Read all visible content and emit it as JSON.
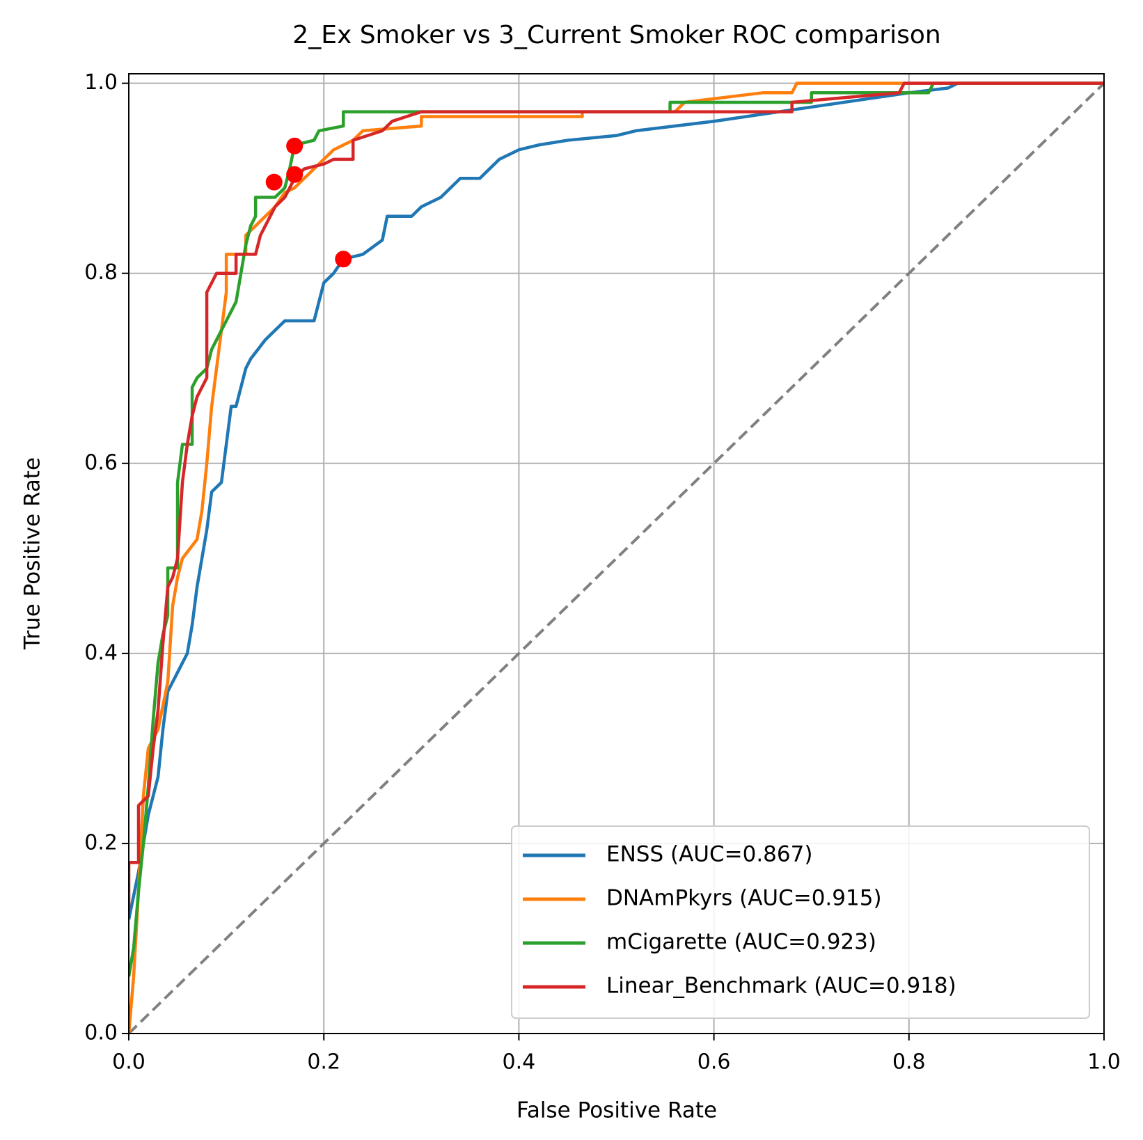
{
  "chart_data": {
    "type": "line",
    "title": "2_Ex Smoker vs 3_Current Smoker ROC comparison",
    "x_label": "False Positive Rate",
    "y_label": "True Positive Rate",
    "xlim": [
      0,
      1
    ],
    "ylim": [
      0,
      1.01
    ],
    "xticks": [
      {
        "value": 0,
        "label": "0.0"
      },
      0.2,
      0.4,
      0.6,
      0.8,
      {
        "value": 1,
        "label": "1.0"
      }
    ],
    "yticks": [
      {
        "value": 0,
        "label": "0.0"
      },
      0.2,
      0.4,
      0.6,
      0.8,
      {
        "value": 1,
        "label": "1.0"
      }
    ],
    "grid": true,
    "legend": "lower right",
    "series": [
      {
        "name": "ENSS (AUC=0.867)",
        "color": "#1f77b4",
        "x": [
          0,
          0.01,
          0.015,
          0.02,
          0.03,
          0.035,
          0.04,
          0.05,
          0.06,
          0.065,
          0.07,
          0.075,
          0.08,
          0.085,
          0.095,
          0.1,
          0.105,
          0.11,
          0.115,
          0.12,
          0.125,
          0.14,
          0.15,
          0.16,
          0.19,
          0.195,
          0.2,
          0.21,
          0.22,
          0.24,
          0.26,
          0.265,
          0.29,
          0.3,
          0.32,
          0.34,
          0.36,
          0.37,
          0.38,
          0.4,
          0.42,
          0.45,
          0.5,
          0.52,
          0.6,
          0.7,
          0.8,
          0.84,
          0.85,
          1
        ],
        "values": [
          0.12,
          0.17,
          0.2,
          0.23,
          0.27,
          0.32,
          0.36,
          0.38,
          0.4,
          0.43,
          0.47,
          0.5,
          0.53,
          0.57,
          0.58,
          0.62,
          0.66,
          0.66,
          0.68,
          0.7,
          0.71,
          0.73,
          0.74,
          0.75,
          0.75,
          0.77,
          0.79,
          0.8,
          0.815,
          0.82,
          0.835,
          0.86,
          0.86,
          0.87,
          0.88,
          0.9,
          0.9,
          0.91,
          0.92,
          0.93,
          0.935,
          0.94,
          0.945,
          0.95,
          0.96,
          0.975,
          0.99,
          0.995,
          1,
          1
        ]
      },
      {
        "name": "DNAmPkyrs (AUC=0.915)",
        "color": "#ff7f0e",
        "x": [
          0,
          0.005,
          0.01,
          0.015,
          0.02,
          0.03,
          0.04,
          0.045,
          0.05,
          0.055,
          0.07,
          0.075,
          0.08,
          0.085,
          0.09,
          0.095,
          0.1,
          0.1,
          0.12,
          0.12,
          0.14,
          0.15,
          0.16,
          0.17,
          0.18,
          0.2,
          0.21,
          0.23,
          0.24,
          0.3,
          0.3,
          0.465,
          0.465,
          0.56,
          0.57,
          0.65,
          0.68,
          0.685,
          1
        ],
        "values": [
          0,
          0.06,
          0.15,
          0.25,
          0.3,
          0.32,
          0.37,
          0.45,
          0.48,
          0.5,
          0.52,
          0.55,
          0.6,
          0.66,
          0.7,
          0.74,
          0.78,
          0.82,
          0.82,
          0.84,
          0.86,
          0.87,
          0.885,
          0.89,
          0.9,
          0.92,
          0.93,
          0.94,
          0.95,
          0.955,
          0.965,
          0.965,
          0.97,
          0.97,
          0.98,
          0.99,
          0.99,
          1,
          1
        ]
      },
      {
        "name": "mCigarette (AUC=0.923)",
        "color": "#2ca02c",
        "x": [
          0,
          0.005,
          0.01,
          0.015,
          0.02,
          0.025,
          0.03,
          0.035,
          0.04,
          0.04,
          0.05,
          0.05,
          0.05,
          0.055,
          0.065,
          0.065,
          0.07,
          0.08,
          0.085,
          0.09,
          0.1,
          0.105,
          0.11,
          0.115,
          0.12,
          0.125,
          0.13,
          0.13,
          0.15,
          0.16,
          0.165,
          0.17,
          0.19,
          0.195,
          0.22,
          0.22,
          0.3,
          0.555,
          0.555,
          0.7,
          0.7,
          0.82,
          0.825,
          1
        ],
        "values": [
          0.06,
          0.09,
          0.15,
          0.2,
          0.26,
          0.33,
          0.39,
          0.42,
          0.44,
          0.49,
          0.49,
          0.55,
          0.58,
          0.62,
          0.62,
          0.68,
          0.69,
          0.7,
          0.72,
          0.73,
          0.75,
          0.76,
          0.77,
          0.8,
          0.83,
          0.85,
          0.86,
          0.88,
          0.88,
          0.89,
          0.91,
          0.935,
          0.94,
          0.95,
          0.955,
          0.97,
          0.97,
          0.97,
          0.98,
          0.98,
          0.99,
          0.99,
          1,
          1
        ]
      },
      {
        "name": "Linear_Benchmark (AUC=0.918)",
        "color": "#d62728",
        "x": [
          0,
          0,
          0.01,
          0.01,
          0.02,
          0.025,
          0.03,
          0.035,
          0.04,
          0.045,
          0.05,
          0.055,
          0.06,
          0.065,
          0.07,
          0.08,
          0.08,
          0.085,
          0.09,
          0.11,
          0.11,
          0.13,
          0.135,
          0.14,
          0.15,
          0.16,
          0.165,
          0.17,
          0.18,
          0.2,
          0.21,
          0.23,
          0.23,
          0.26,
          0.27,
          0.3,
          0.68,
          0.68,
          0.79,
          0.795,
          1
        ],
        "values": [
          0.13,
          0.18,
          0.18,
          0.24,
          0.25,
          0.3,
          0.34,
          0.41,
          0.47,
          0.48,
          0.5,
          0.58,
          0.62,
          0.65,
          0.67,
          0.69,
          0.78,
          0.79,
          0.8,
          0.8,
          0.82,
          0.82,
          0.84,
          0.85,
          0.87,
          0.88,
          0.89,
          0.9,
          0.91,
          0.915,
          0.92,
          0.92,
          0.94,
          0.95,
          0.96,
          0.97,
          0.97,
          0.98,
          0.99,
          1,
          1
        ]
      }
    ],
    "reference_line": {
      "x": [
        0,
        1
      ],
      "values": [
        0,
        1
      ],
      "color": "#808080",
      "style": "dashed"
    },
    "markers": {
      "color": "#ff0000",
      "x": [
        0.22,
        0.149,
        0.17,
        0.17
      ],
      "values": [
        0.815,
        0.896,
        0.934,
        0.904
      ]
    }
  }
}
